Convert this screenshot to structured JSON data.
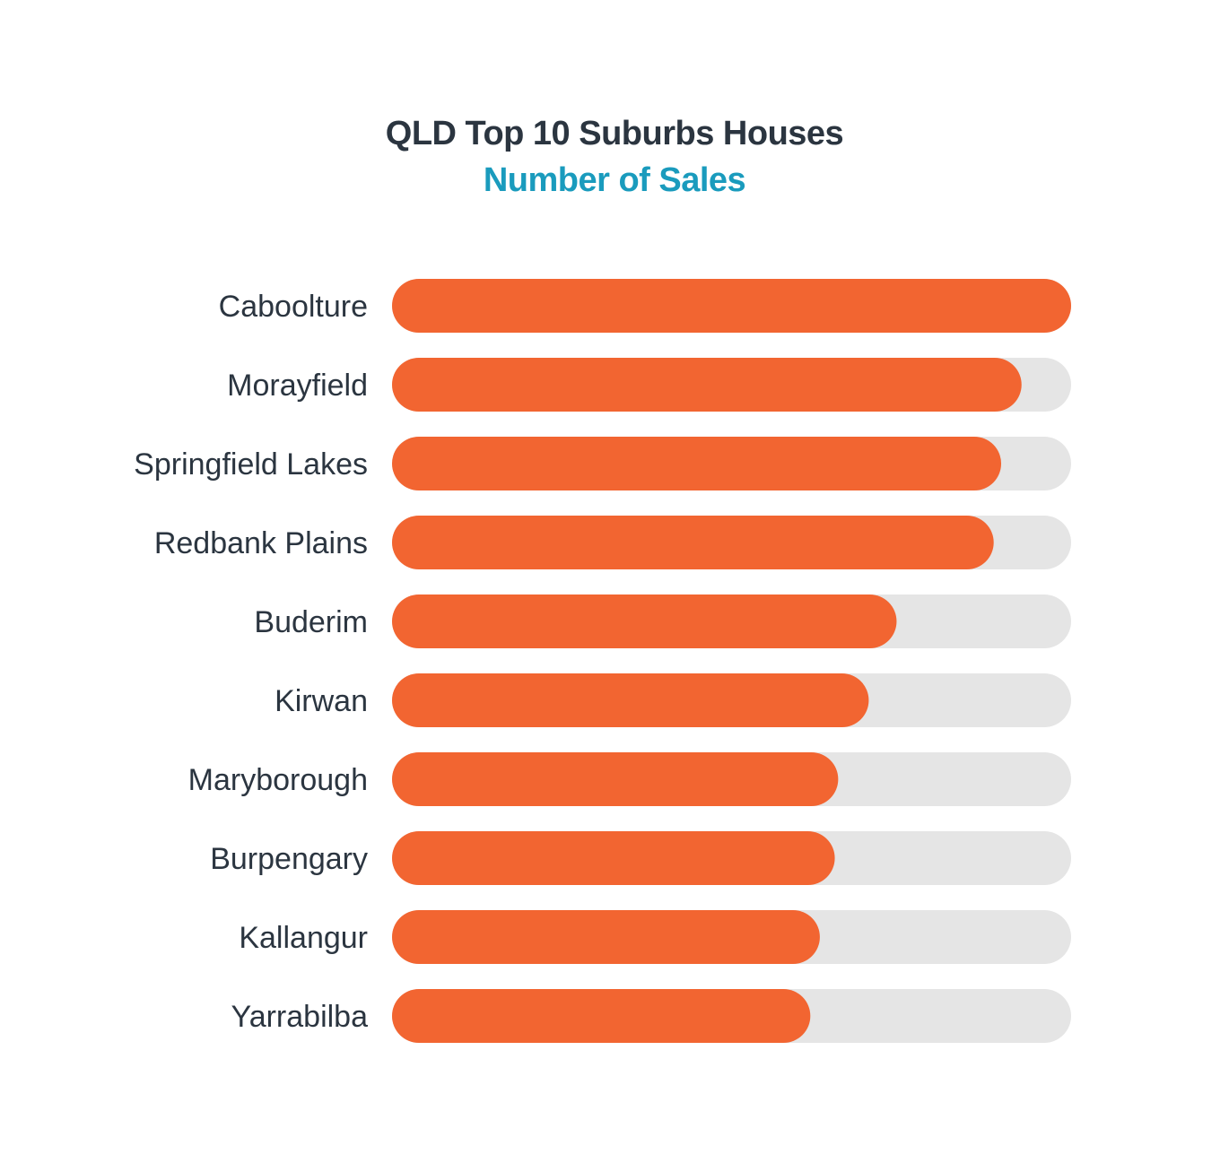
{
  "chart_data": {
    "type": "bar",
    "orientation": "horizontal",
    "title": "QLD Top 10 Suburbs Houses",
    "subtitle": "Number of Sales",
    "categories": [
      "Caboolture",
      "Morayfield",
      "Springfield Lakes",
      "Redbank Plains",
      "Buderim",
      "Kirwan",
      "Maryborough",
      "Burpengary",
      "Kallangur",
      "Yarrabilba"
    ],
    "values": [
      1.0,
      0.927,
      0.897,
      0.886,
      0.743,
      0.702,
      0.657,
      0.652,
      0.63,
      0.616
    ],
    "value_unit": "fraction of maximum",
    "xlim": [
      0,
      1
    ],
    "grid": false,
    "legend": "none",
    "colors": {
      "bar": "#f26531",
      "track": "#e5e5e5",
      "title": "#2b3540",
      "subtitle": "#1a9bbd",
      "label": "#2b3540"
    }
  }
}
